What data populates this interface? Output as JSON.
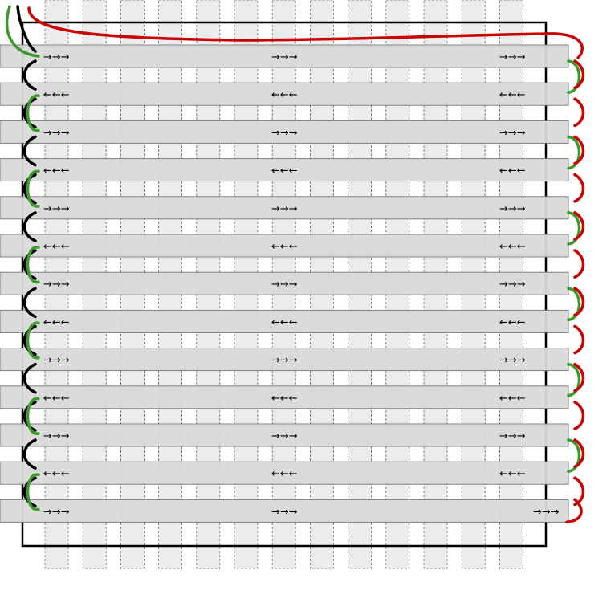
{
  "colors": {
    "background": "#ffffff",
    "frame": "#000000",
    "vertical_strip_fill": "#ececec",
    "vertical_strip_edge": "#666666",
    "horizontal_strip_fill": "#d9d9d9",
    "horizontal_strip_edge": "#808080",
    "left_wire": "#000000",
    "loop_wire": "#3a9a2a",
    "right_wire": "#cc0000"
  },
  "rows": [
    {
      "direction": "right",
      "label": "→→→"
    },
    {
      "direction": "left",
      "label": "←←←"
    },
    {
      "direction": "right",
      "label": "→→→"
    },
    {
      "direction": "left",
      "label": "←←←"
    },
    {
      "direction": "right",
      "label": "→→→"
    },
    {
      "direction": "left",
      "label": "←←←"
    },
    {
      "direction": "right",
      "label": "→→→"
    },
    {
      "direction": "left",
      "label": "←←←"
    },
    {
      "direction": "right",
      "label": "→→→"
    },
    {
      "direction": "left",
      "label": "←←←"
    },
    {
      "direction": "right",
      "label": "→→→"
    },
    {
      "direction": "left",
      "label": "←←←"
    },
    {
      "direction": "right",
      "label": "→→→"
    }
  ],
  "vertical_strip_count": 13
}
